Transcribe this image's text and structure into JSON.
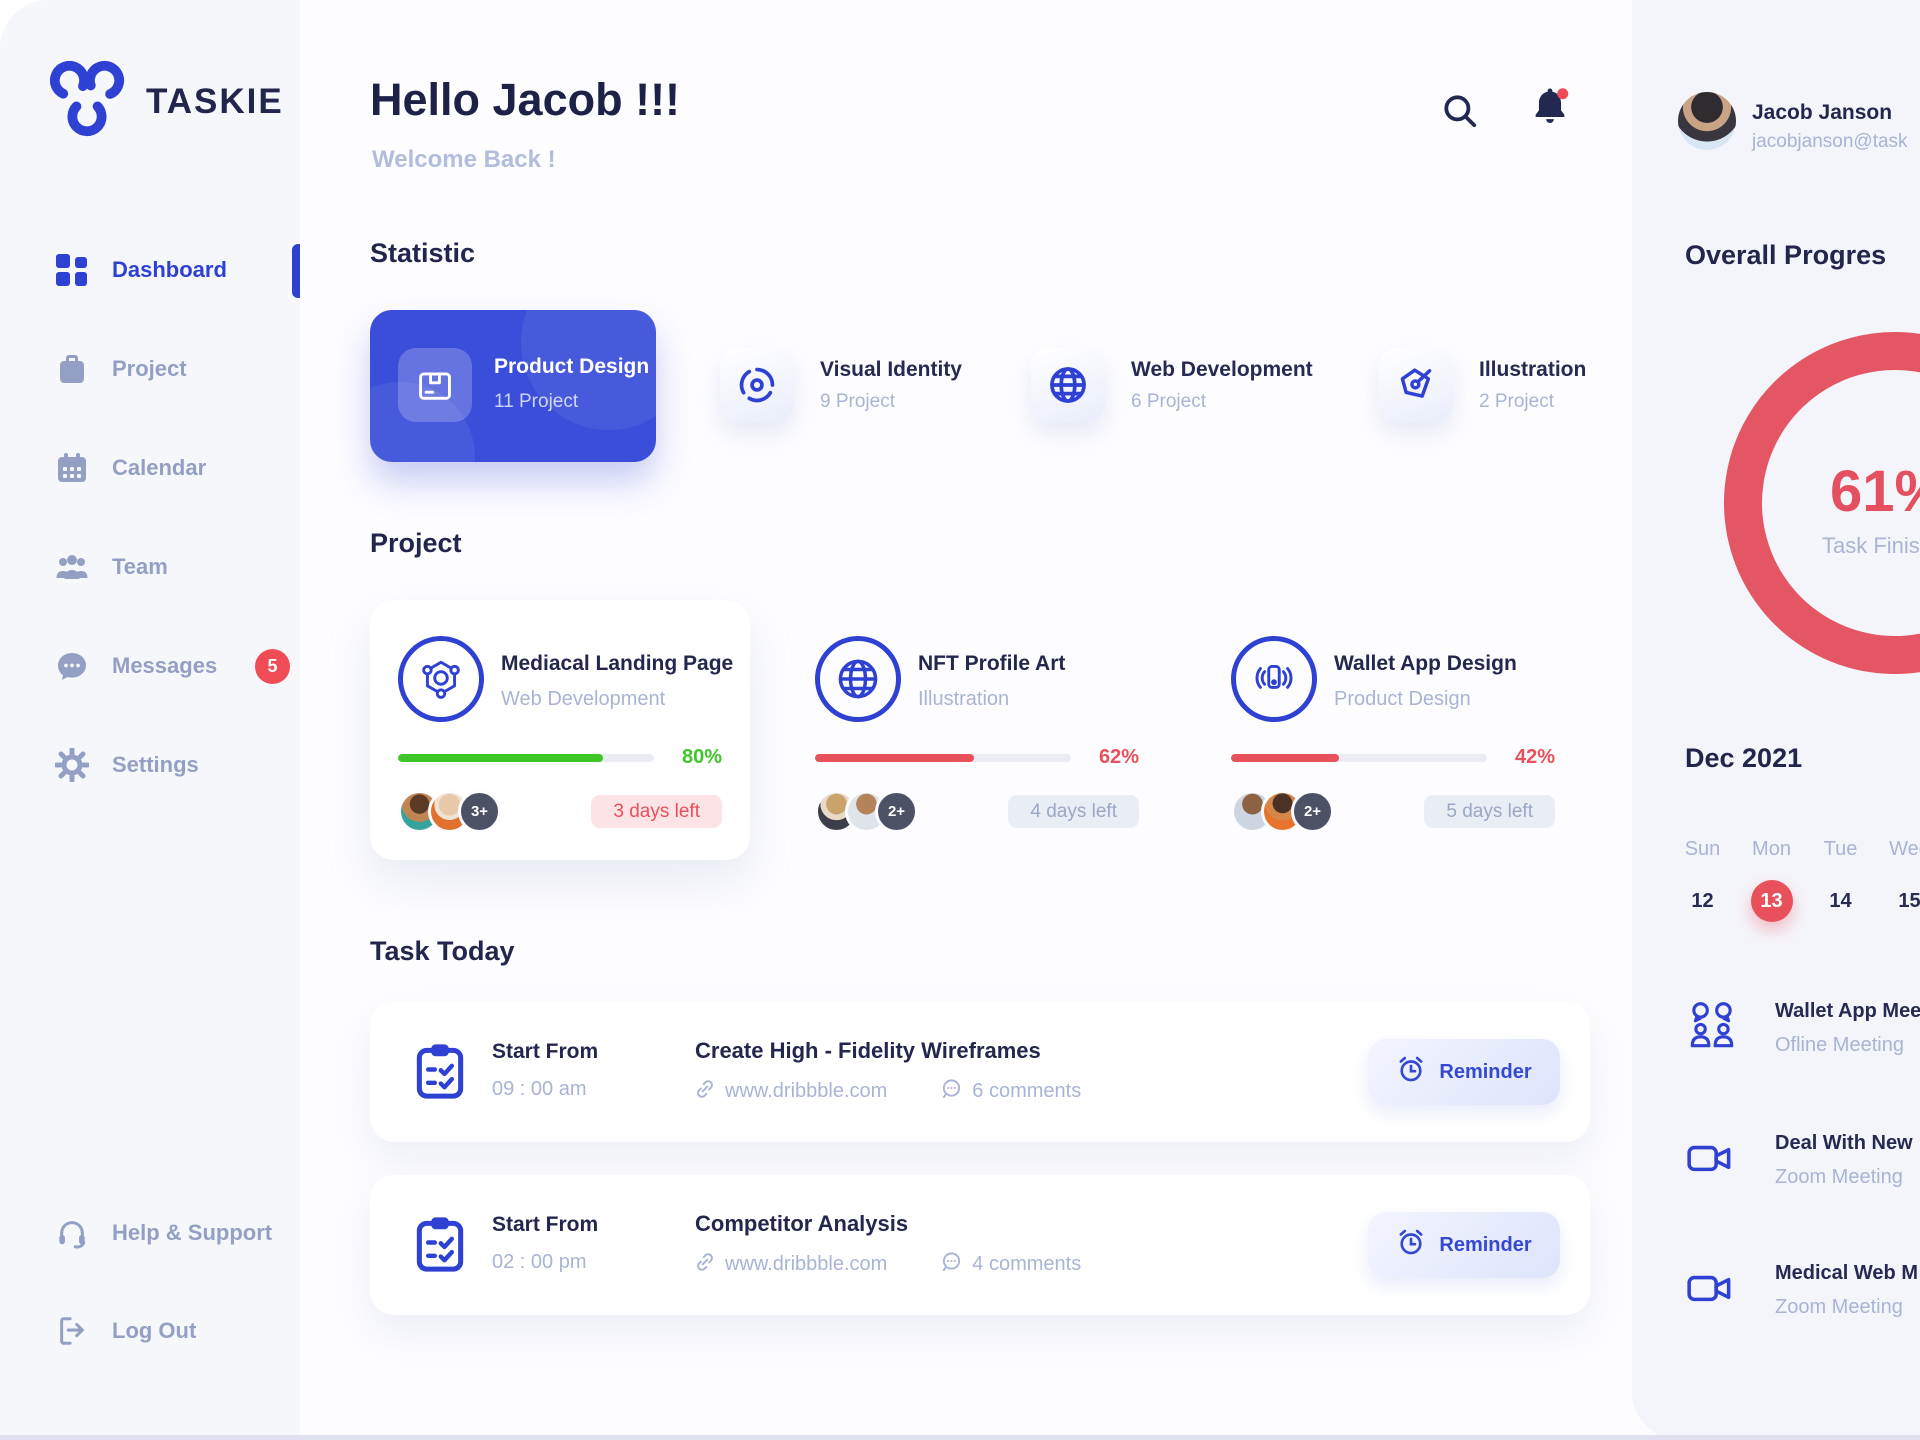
{
  "brand": {
    "name": "TASKIE",
    "logo_icon": "triple-arc-logo-icon"
  },
  "header": {
    "greeting": "Hello Jacob !!!",
    "subtitle": "Welcome Back !",
    "icons": {
      "search": "search-icon",
      "notifications": "bell-icon"
    },
    "notification_dot": true
  },
  "sidebar": {
    "items": [
      {
        "label": "Dashboard",
        "icon": "dashboard-grid-icon",
        "active": true
      },
      {
        "label": "Project",
        "icon": "briefcase-icon",
        "active": false
      },
      {
        "label": "Calendar",
        "icon": "calendar-icon",
        "active": false
      },
      {
        "label": "Team",
        "icon": "team-icon",
        "active": false
      },
      {
        "label": "Messages",
        "icon": "chat-bubble-icon",
        "active": false,
        "badge": "5"
      },
      {
        "label": "Settings",
        "icon": "gear-icon",
        "active": false
      }
    ],
    "footer_items": [
      {
        "label": "Help & Support",
        "icon": "headset-icon"
      },
      {
        "label": "Log Out",
        "icon": "logout-icon"
      }
    ]
  },
  "statistic": {
    "title": "Statistic",
    "cards": [
      {
        "name": "Product Design",
        "count": "11 Project",
        "icon": "package-icon",
        "highlight": true
      },
      {
        "name": "Visual Identity",
        "count": "9 Project",
        "icon": "spiral-icon",
        "highlight": false
      },
      {
        "name": "Web Development",
        "count": "6 Project",
        "icon": "globe-icon",
        "highlight": false
      },
      {
        "name": "Illustration",
        "count": "2 Project",
        "icon": "pen-nib-icon",
        "highlight": false
      }
    ]
  },
  "projects": {
    "title": "Project",
    "cards": [
      {
        "name": "Mediacal Landing Page",
        "category": "Web Development",
        "icon": "hexagon-molecule-icon",
        "progress": 80,
        "progress_label": "80%",
        "progress_color": "#3ec629",
        "members_extra": "3+",
        "deadline": "3 days left",
        "deadline_style": "urgent"
      },
      {
        "name": "NFT Profile Art",
        "category": "Illustration",
        "icon": "globe-icon",
        "progress": 62,
        "progress_label": "62%",
        "progress_color": "#e8505b",
        "members_extra": "2+",
        "deadline": "4 days left",
        "deadline_style": "normal"
      },
      {
        "name": "Wallet App Design",
        "category": "Product Design",
        "icon": "phone-waves-icon",
        "progress": 42,
        "progress_label": "42%",
        "progress_color": "#e8505b",
        "members_extra": "2+",
        "deadline": "5 days left",
        "deadline_style": "normal"
      }
    ]
  },
  "tasks": {
    "title": "Task Today",
    "items": [
      {
        "start_label": "Start From",
        "time": "09 : 00 am",
        "title": "Create High - Fidelity Wireframes",
        "link": "www.dribbble.com",
        "comments": "6 comments",
        "button": "Reminder",
        "icon": "clipboard-check-icon"
      },
      {
        "start_label": "Start From",
        "time": "02 : 00 pm",
        "title": "Competitor Analysis",
        "link": "www.dribbble.com",
        "comments": "4 comments",
        "button": "Reminder",
        "icon": "clipboard-check-icon"
      }
    ]
  },
  "profile": {
    "name": "Jacob Janson",
    "email": "jacobjanson@task"
  },
  "overall": {
    "title": "Overall Progres",
    "percent": "61%",
    "caption": "Task Finis",
    "value": 61
  },
  "calendar": {
    "month": "Dec 2021",
    "day_headers": [
      "Sun",
      "Mon",
      "Tue",
      "Wed"
    ],
    "dates": [
      {
        "day": "12",
        "selected": false
      },
      {
        "day": "13",
        "selected": true
      },
      {
        "day": "14",
        "selected": false
      },
      {
        "day": "15",
        "selected": false
      }
    ]
  },
  "meetings": {
    "items": [
      {
        "title": "Wallet App Mee",
        "type": "Ofline Meeting",
        "icon": "people-chat-icon"
      },
      {
        "title": "Deal With New",
        "type": "Zoom Meeting",
        "icon": "video-camera-icon"
      },
      {
        "title": "Medical Web M",
        "type": "Zoom Meeting",
        "icon": "video-camera-icon"
      }
    ]
  },
  "colors": {
    "accent": "#2e41d3",
    "card_blue": "#3a4ed9",
    "red": "#e8505b",
    "green": "#3ec629",
    "badge_red": "#ef4c56",
    "navy": "#22264c",
    "muted": "#a9b4d4",
    "sidebar_bg": "#f6f7fb",
    "panel_bg": "#f4f5fa"
  }
}
